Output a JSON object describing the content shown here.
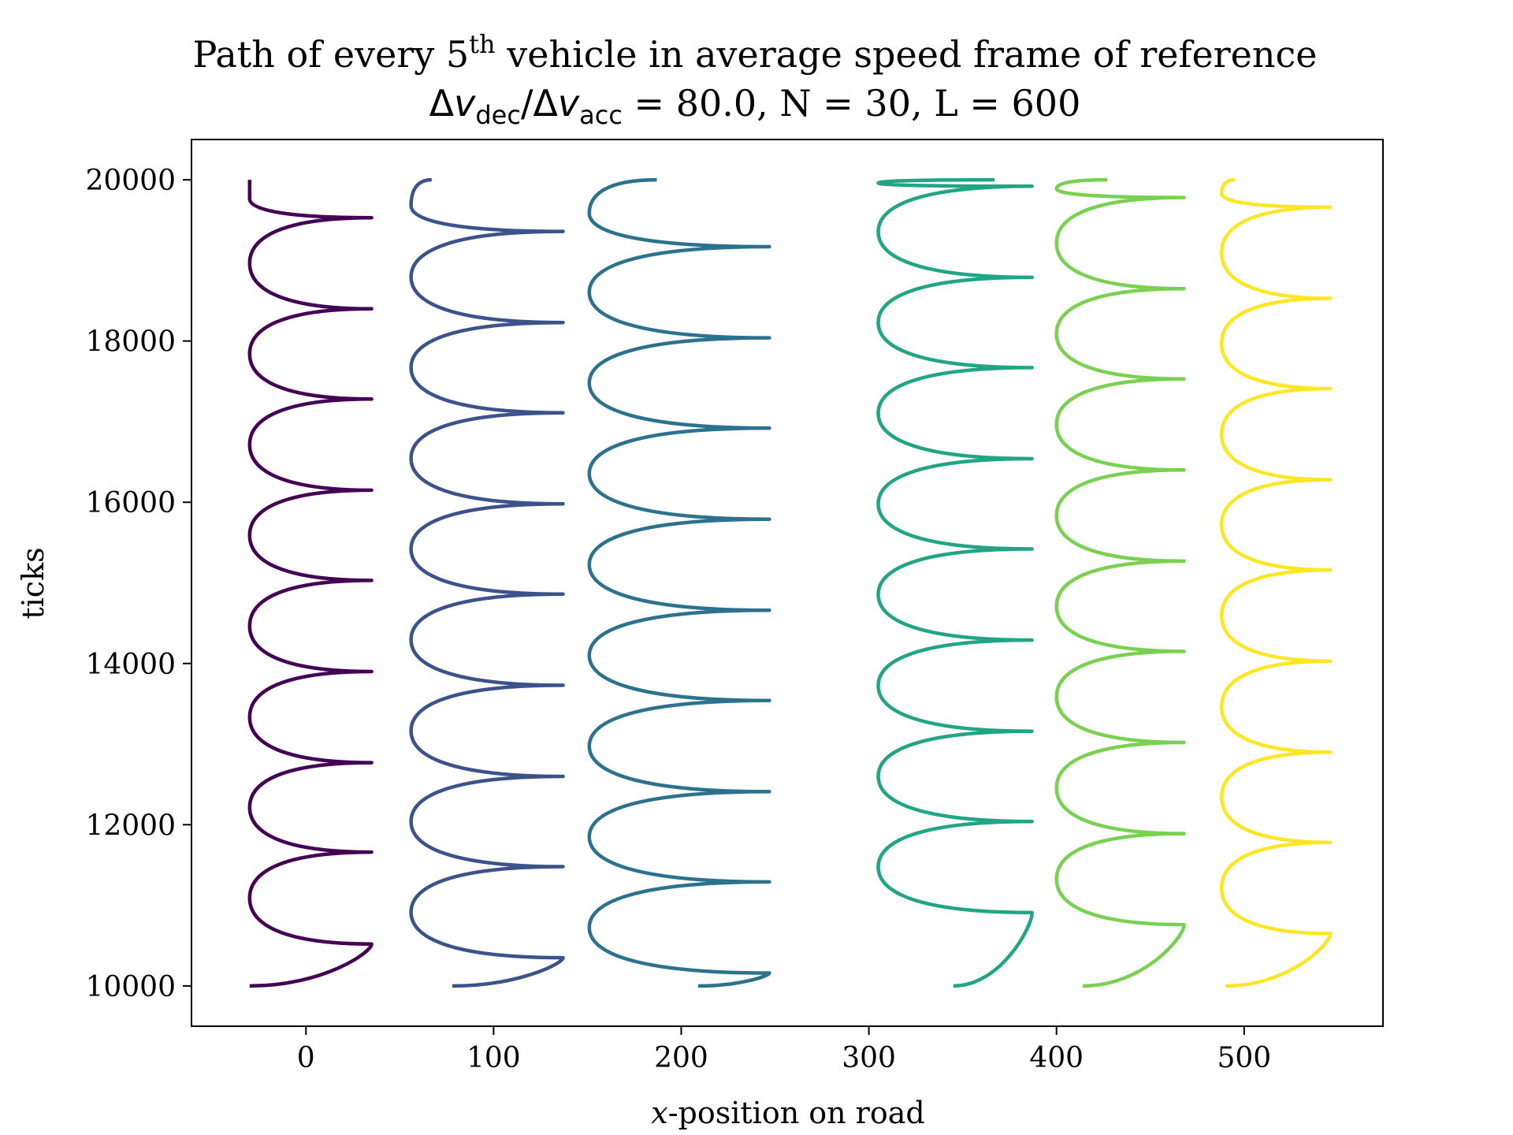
{
  "chart_data": {
    "type": "line",
    "title": {
      "line1_pre": "Path of every 5",
      "line1_sup": "th",
      "line1_post": " vehicle in average speed frame of reference",
      "line2_delta": "Δ",
      "line2_v": "v",
      "line2_sub_dec": "dec",
      "line2_slash": "/",
      "line2_sub_acc": "acc",
      "line2_rest": " = 80.0, N = 30, L = 600"
    },
    "xlabel_italic": "x",
    "xlabel_rest": "-position on road",
    "ylabel": "ticks",
    "xlim": [
      -61,
      574
    ],
    "ylim": [
      9500,
      20500
    ],
    "x_ticks": [
      0,
      100,
      200,
      300,
      400,
      500
    ],
    "x_tick_labels": [
      "0",
      "100",
      "200",
      "300",
      "400",
      "500"
    ],
    "y_ticks": [
      10000,
      12000,
      14000,
      16000,
      18000,
      20000
    ],
    "y_tick_labels": [
      "10000",
      "12000",
      "14000",
      "16000",
      "18000",
      "20000"
    ],
    "grid": false,
    "series": [
      {
        "color": "#440154",
        "x_min": -30,
        "x_max": 35,
        "start_x": -30,
        "end_x": -30,
        "right_peaks_y": [
          10520,
          11660,
          12770,
          13900,
          15030,
          16150,
          17280,
          18400,
          19530
        ]
      },
      {
        "color": "#3b528b",
        "x_min": 56,
        "x_max": 137,
        "start_x": 78,
        "end_x": 67,
        "right_peaks_y": [
          10350,
          11480,
          12600,
          13730,
          14860,
          15980,
          17110,
          18230,
          19360
        ]
      },
      {
        "color": "#2c728e",
        "x_min": 151,
        "x_max": 247,
        "start_x": 209,
        "end_x": 187,
        "right_peaks_y": [
          10160,
          11290,
          12410,
          13540,
          14660,
          15790,
          16920,
          18040,
          19170
        ]
      },
      {
        "color": "#21a585",
        "x_min": 305,
        "x_max": 387,
        "start_x": 345,
        "end_x": 367,
        "right_peaks_y": [
          10910,
          12040,
          13160,
          14290,
          15420,
          16540,
          17670,
          18790,
          19920
        ]
      },
      {
        "color": "#7ad151",
        "x_min": 400,
        "x_max": 468,
        "start_x": 414,
        "end_x": 427,
        "right_peaks_y": [
          10760,
          11890,
          13020,
          14150,
          15270,
          16400,
          17530,
          18650,
          19780
        ]
      },
      {
        "color": "#fde725",
        "x_min": 488,
        "x_max": 546,
        "start_x": 490,
        "end_x": 495,
        "right_peaks_y": [
          10650,
          11780,
          12900,
          14030,
          15160,
          16280,
          17410,
          18530,
          19660
        ]
      }
    ]
  }
}
